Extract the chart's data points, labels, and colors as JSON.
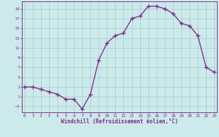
{
  "x": [
    0,
    1,
    2,
    3,
    4,
    5,
    6,
    7,
    8,
    9,
    10,
    11,
    12,
    13,
    14,
    15,
    16,
    17,
    18,
    19,
    20,
    21,
    22,
    23
  ],
  "y": [
    3,
    3,
    2.5,
    2,
    1.5,
    0.5,
    0.5,
    -1.5,
    1.5,
    8.5,
    12,
    13.5,
    14,
    17,
    17.5,
    19.5,
    19.5,
    19,
    18,
    16,
    15.5,
    13.5,
    7,
    6
  ],
  "xlabel": "Windchill (Refroidissement éolien,°C)",
  "yticks": [
    -1,
    1,
    3,
    5,
    7,
    9,
    11,
    13,
    15,
    17,
    19
  ],
  "xticks": [
    0,
    1,
    2,
    3,
    4,
    5,
    6,
    7,
    8,
    9,
    10,
    11,
    12,
    13,
    14,
    15,
    16,
    17,
    18,
    19,
    20,
    21,
    22,
    23
  ],
  "ylim": [
    -2.2,
    20.5
  ],
  "xlim": [
    -0.3,
    23.3
  ],
  "line_color": "#7b2d8b",
  "bg_color": "#cceaea",
  "grid_color": "#aacfcf",
  "label_color": "#7b2d8b",
  "tick_color": "#7b2d8b",
  "marker": "+",
  "linewidth": 1.0,
  "markersize": 4
}
